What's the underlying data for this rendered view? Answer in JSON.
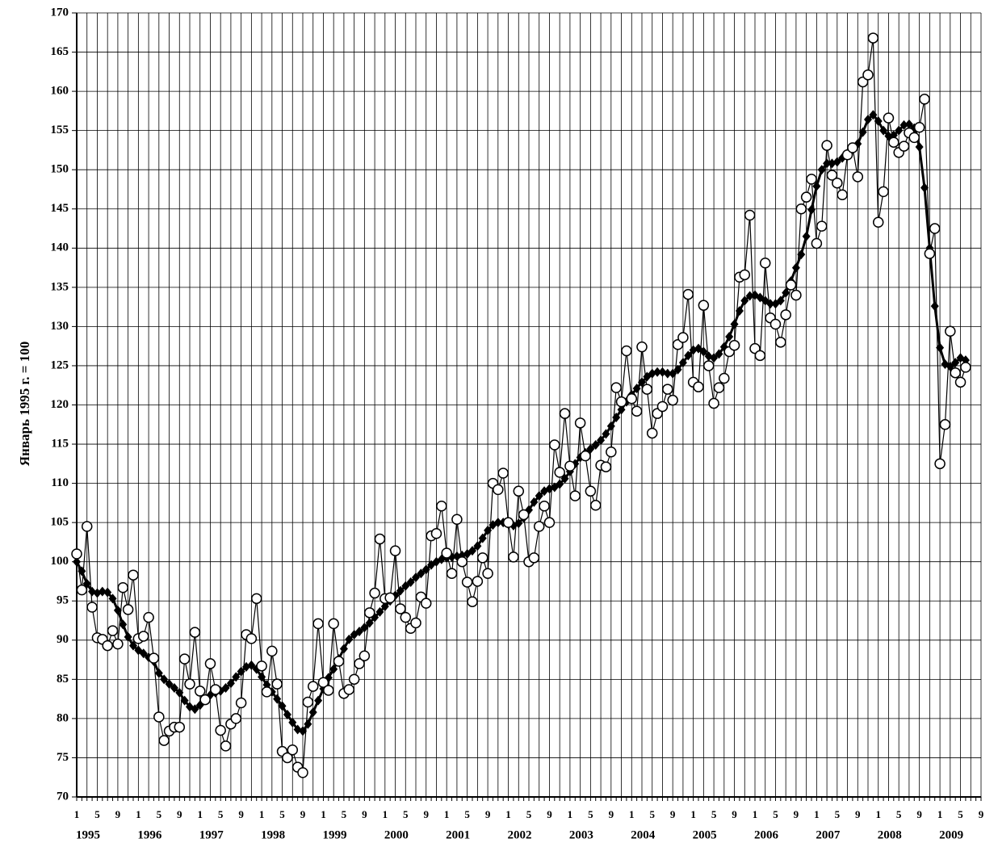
{
  "chart_data": {
    "type": "line",
    "y_label": "Январь 1995 г. = 100",
    "categories": [
      "1",
      null,
      null,
      null,
      "5",
      null,
      null,
      null,
      "9",
      null,
      null,
      null,
      "1",
      null,
      null,
      null,
      "5",
      null,
      null,
      null,
      "9",
      null,
      null,
      null,
      "1",
      null,
      null,
      null,
      "5",
      null,
      null,
      null,
      "9",
      null,
      null,
      null,
      "1",
      null,
      null,
      null,
      "5",
      null,
      null,
      null,
      "9",
      null,
      null,
      null,
      "1",
      null,
      null,
      null,
      "5",
      null,
      null,
      null,
      "9",
      null,
      null,
      null,
      "1",
      null,
      null,
      null,
      "5",
      null,
      null,
      null,
      "9",
      null,
      null,
      null,
      "1",
      null,
      null,
      null,
      "5",
      null,
      null,
      null,
      "9",
      null,
      null,
      null,
      "1",
      null,
      null,
      null,
      "5",
      null,
      null,
      null,
      "9",
      null,
      null,
      null,
      "1",
      null,
      null,
      null,
      "5",
      null,
      null,
      null,
      "9",
      null,
      null,
      null,
      "1",
      null,
      null,
      null,
      "5",
      null,
      null,
      null,
      "9",
      null,
      null,
      null,
      "1",
      null,
      null,
      null,
      "5",
      null,
      null,
      null,
      "9",
      null,
      null,
      null,
      "1",
      null,
      null,
      null,
      "5",
      null,
      null,
      null,
      "9",
      null,
      null,
      null,
      "1",
      null,
      null,
      null,
      "5",
      null,
      null,
      null,
      "9",
      null,
      null,
      null,
      "1",
      null,
      null,
      null,
      "5",
      null,
      null,
      null,
      "9",
      null,
      null,
      null,
      "1",
      null,
      null,
      null,
      "5",
      null,
      null,
      null,
      "9"
    ],
    "year_labels": [
      "1995",
      "1996",
      "1997",
      "1998",
      "1999",
      "2000",
      "2001",
      "2002",
      "2003",
      "2004",
      "2005",
      "2006",
      "2007",
      "2008",
      "2009"
    ],
    "series": [
      {
        "color": "#000000",
        "marker": "circle",
        "values": [
          101,
          96.4,
          104.5,
          94.2,
          90.3,
          90.1,
          89.3,
          91.2,
          89.5,
          96.7,
          93.9,
          98.3,
          90.2,
          90.5,
          92.9,
          87.7,
          80.2,
          77.2,
          78.4,
          78.9,
          78.9,
          87.6,
          84.4,
          91,
          83.5,
          82.4,
          87,
          83.7,
          78.5,
          76.5,
          79.3,
          80,
          82,
          90.7,
          90.2,
          95.3,
          86.7,
          83.4,
          88.6,
          84.4,
          75.8,
          75,
          76,
          73.8,
          73.1,
          82.1,
          84.1,
          92.1,
          84.6,
          83.6,
          92.1,
          87.3,
          83.2,
          83.7,
          85,
          87,
          88,
          93.5,
          96,
          102.9,
          95.3,
          95.4,
          101.4,
          94,
          92.9,
          91.5,
          92.2,
          95.5,
          94.7,
          103.3,
          103.6,
          107.1,
          101.1,
          98.5,
          105.4,
          100,
          97.4,
          94.9,
          97.5,
          100.5,
          98.5,
          110,
          109.2,
          111.3,
          105,
          100.6,
          109,
          106,
          100,
          100.5,
          104.5,
          107.1,
          105,
          114.9,
          111.4,
          118.9,
          112.2,
          108.4,
          117.7,
          113.5,
          109,
          107.2,
          112.3,
          112.1,
          114,
          122.2,
          120.4,
          126.9,
          120.8,
          119.2,
          127.4,
          122,
          116.4,
          118.9,
          119.8,
          122,
          120.6,
          127.7,
          128.6,
          134.1,
          122.9,
          122.3,
          132.7,
          125,
          120.2,
          122.2,
          123.4,
          126.8,
          127.6,
          136.3,
          136.6,
          144.2,
          127.2,
          126.3,
          138.1,
          131.1,
          130.3,
          128,
          131.5,
          135.3,
          134,
          145,
          146.5,
          148.8,
          140.6,
          142.8,
          153.1,
          149.3,
          148.3,
          146.8,
          151.9,
          152.8,
          149.1,
          161.2,
          162.1,
          166.8,
          143.3,
          147.2,
          156.6,
          153.5,
          152.2,
          153,
          154.7,
          154.1,
          155.4,
          159,
          139.3,
          142.5,
          112.5,
          117.5,
          129.4,
          124.1,
          122.9,
          124.8,
          null,
          null,
          null
        ]
      },
      {
        "color": "#000000",
        "marker": "diamond",
        "values": [
          100,
          98.8,
          97.2,
          96.2,
          96,
          96.2,
          96.1,
          95.3,
          93.8,
          92,
          90.4,
          89.3,
          88.7,
          88.3,
          87.8,
          87.3,
          85.8,
          85,
          84.4,
          83.9,
          83.3,
          82.3,
          81.5,
          81.2,
          81.7,
          82.5,
          83,
          83.3,
          83.5,
          83.9,
          84.5,
          85.3,
          86,
          86.6,
          86.8,
          86.3,
          85.3,
          84.3,
          83.4,
          82.5,
          81.6,
          80.5,
          79.5,
          78.6,
          78.4,
          79.3,
          80.8,
          82.3,
          83.8,
          85.2,
          86.3,
          87.6,
          88.9,
          90.1,
          90.7,
          91.1,
          91.6,
          92.2,
          92.9,
          93.6,
          94.3,
          95,
          95.7,
          96.3,
          96.9,
          97.4,
          98,
          98.5,
          99,
          99.6,
          100,
          100.3,
          100.5,
          100.6,
          100.7,
          100.8,
          101,
          101.4,
          102,
          103,
          104,
          104.7,
          105,
          105,
          104.8,
          104.6,
          104.9,
          105.6,
          106.6,
          107.6,
          108.4,
          109,
          109.3,
          109.5,
          109.9,
          110.6,
          111.5,
          112.5,
          113.3,
          113.9,
          114.4,
          114.9,
          115.5,
          116.3,
          117.3,
          118.4,
          119.4,
          120.4,
          121.3,
          122.1,
          122.9,
          123.6,
          124,
          124.2,
          124.2,
          124,
          124,
          124.5,
          125.4,
          126.3,
          127,
          127.2,
          126.8,
          126.2,
          126,
          126.5,
          127.4,
          128.7,
          130.3,
          132,
          133.3,
          133.9,
          134,
          133.7,
          133.3,
          132.9,
          132.9,
          133.3,
          134.3,
          135.8,
          137.5,
          139.2,
          141.5,
          144.9,
          147.9,
          150,
          150.8,
          150.8,
          151,
          151.5,
          152.1,
          152.6,
          153.3,
          154.8,
          156.4,
          157,
          156.2,
          155,
          154.3,
          154.4,
          155,
          155.7,
          155.8,
          155.3,
          152.9,
          147.7,
          140,
          132.6,
          127.3,
          125.2,
          124.9,
          125.4,
          126,
          125.7,
          null,
          null,
          null
        ]
      }
    ],
    "ylim": [
      70,
      170
    ],
    "yticks": [
      70,
      75,
      80,
      85,
      90,
      95,
      100,
      105,
      110,
      115,
      120,
      125,
      130,
      135,
      140,
      145,
      150,
      155,
      160,
      165,
      170
    ],
    "grid": true
  }
}
